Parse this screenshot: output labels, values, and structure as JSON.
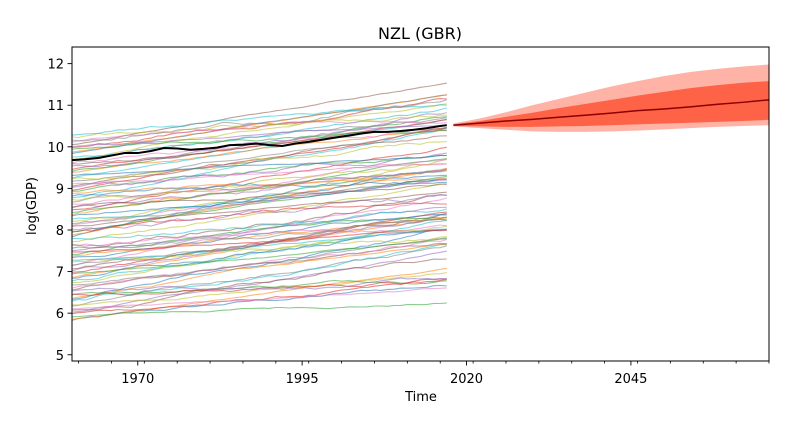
{
  "chart_data": {
    "type": "line",
    "title": "NZL (GBR)",
    "xlabel": "Time",
    "ylabel": "log(GDP)",
    "xlim": [
      1960,
      2066
    ],
    "ylim": [
      4.85,
      12.4
    ],
    "x_ticks": [
      1970,
      1995,
      2020,
      2045
    ],
    "y_ticks": [
      5,
      6,
      7,
      8,
      9,
      10,
      11,
      12
    ],
    "grid": false,
    "legend": "none",
    "history_range": [
      1960,
      2017
    ],
    "background_series": {
      "count": 90,
      "note": "thin colored lines for other countries, roughly uniformly spread between ~6 and ~11 in 1960 with upward drift",
      "colors": [
        "#1f77b4",
        "#ff7f0e",
        "#2ca02c",
        "#d62728",
        "#9467bd",
        "#8c564b",
        "#e377c2",
        "#7f7f7f",
        "#bcbd22",
        "#17becf"
      ],
      "start_range": [
        5.8,
        10.3
      ],
      "end_range": [
        6.5,
        11.3
      ]
    },
    "highlight_series": {
      "color": "#000000",
      "x": [
        1960,
        1962,
        1964,
        1966,
        1968,
        1970,
        1972,
        1974,
        1976,
        1978,
        1980,
        1982,
        1984,
        1986,
        1988,
        1990,
        1992,
        1994,
        1996,
        1998,
        2000,
        2002,
        2004,
        2006,
        2008,
        2010,
        2012,
        2014,
        2016,
        2017
      ],
      "y": [
        9.68,
        9.7,
        9.73,
        9.79,
        9.85,
        9.85,
        9.9,
        9.97,
        9.96,
        9.93,
        9.95,
        9.98,
        10.04,
        10.05,
        10.08,
        10.04,
        10.02,
        10.08,
        10.12,
        10.17,
        10.22,
        10.27,
        10.32,
        10.36,
        10.36,
        10.38,
        10.41,
        10.45,
        10.5,
        10.52
      ]
    },
    "forecast": {
      "x": [
        2018,
        2022,
        2026,
        2030,
        2034,
        2038,
        2042,
        2046,
        2050,
        2054,
        2058,
        2062,
        2066
      ],
      "median": [
        10.52,
        10.57,
        10.62,
        10.66,
        10.71,
        10.76,
        10.81,
        10.87,
        10.91,
        10.96,
        11.02,
        11.07,
        11.13
      ],
      "inner_lower": [
        10.5,
        10.49,
        10.48,
        10.48,
        10.49,
        10.5,
        10.52,
        10.54,
        10.56,
        10.58,
        10.6,
        10.62,
        10.65
      ],
      "inner_upper": [
        10.54,
        10.62,
        10.72,
        10.82,
        10.93,
        11.03,
        11.13,
        11.23,
        11.32,
        11.41,
        11.48,
        11.54,
        11.58
      ],
      "outer_lower": [
        10.49,
        10.45,
        10.41,
        10.37,
        10.36,
        10.36,
        10.37,
        10.39,
        10.42,
        10.45,
        10.48,
        10.5,
        10.52
      ],
      "outer_upper": [
        10.56,
        10.68,
        10.83,
        11.0,
        11.15,
        11.3,
        11.45,
        11.58,
        11.7,
        11.8,
        11.87,
        11.93,
        11.98
      ],
      "median_color": "#8b0000",
      "inner_color": "#ff6347",
      "outer_color": "#ffb3a7"
    }
  }
}
